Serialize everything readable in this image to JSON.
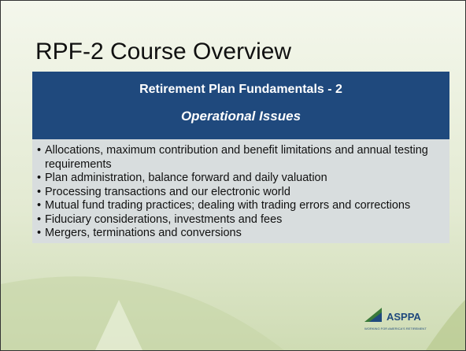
{
  "title": "RPF-2 Course Overview",
  "banner": {
    "heading": "Retirement Plan Fundamentals - 2",
    "subheading": "Operational Issues"
  },
  "bullets": [
    "Allocations, maximum contribution and benefit limitations and annual testing requirements",
    "Plan administration, balance forward and daily valuation",
    "Processing transactions and our electronic world",
    "Mutual fund trading practices; dealing with trading errors and corrections",
    "Fiduciary considerations, investments and fees",
    "Mergers, terminations and conversions"
  ],
  "logo": {
    "name": "ASPPA",
    "tagline": "WORKING FOR AMERICA'S RETIREMENT"
  }
}
